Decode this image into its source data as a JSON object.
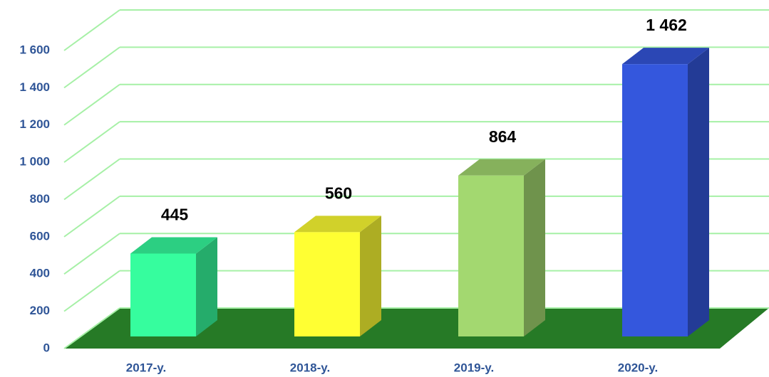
{
  "chart_data": {
    "type": "bar3d",
    "categories": [
      "2017-y.",
      "2018-y.",
      "2019-y.",
      "2020-y."
    ],
    "series": [
      {
        "colors": [
          "#36fd9e",
          "#ffff33",
          "#a3d870",
          "#3457dd"
        ],
        "values": [
          445,
          560,
          864,
          1462
        ],
        "value_labels": [
          "445",
          "560",
          "864",
          "1 462"
        ]
      }
    ],
    "ylim": [
      0,
      1600
    ],
    "yticks": [
      0,
      200,
      400,
      600,
      800,
      {
        "value": 1000,
        "label": "1 000"
      },
      {
        "value": 1200,
        "label": "1 200"
      },
      {
        "value": 1400,
        "label": "1 400"
      },
      {
        "value": 1600,
        "label": "1 600"
      }
    ],
    "grid": true,
    "floor_color": "#267a26",
    "grid_color": "#a6f0a6"
  }
}
